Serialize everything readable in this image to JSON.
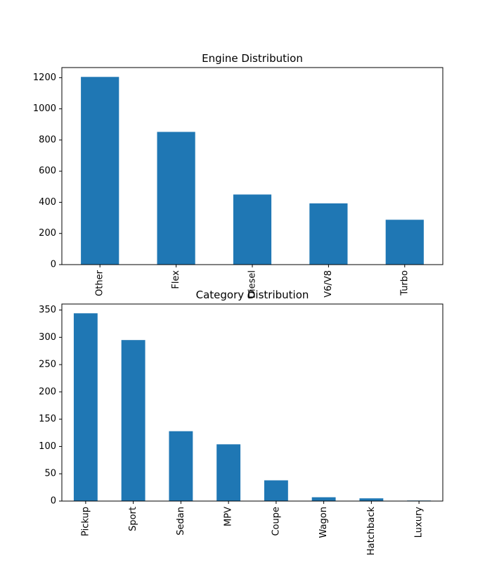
{
  "chart_data": [
    {
      "type": "bar",
      "title": "Engine Distribution",
      "xlabel": "",
      "ylabel": "",
      "categories": [
        "Other",
        "Flex",
        "Diesel",
        "V6/V8",
        "Turbo"
      ],
      "values": [
        1205,
        852,
        450,
        393,
        288
      ],
      "ylim": [
        0,
        1265
      ],
      "yticks": [
        0,
        200,
        400,
        600,
        800,
        1000,
        1200
      ],
      "grid": false,
      "bar_color": "#1f77b4"
    },
    {
      "type": "bar",
      "title": "Category Distribution",
      "xlabel": "",
      "ylabel": "",
      "categories": [
        "Pickup",
        "Sport",
        "Sedan",
        "MPV",
        "Coupe",
        "Wagon",
        "Hatchback",
        "Luxury"
      ],
      "values": [
        344,
        295,
        128,
        104,
        38,
        7,
        5,
        1
      ],
      "ylim": [
        0,
        361
      ],
      "yticks": [
        0,
        50,
        100,
        150,
        200,
        250,
        300,
        350
      ],
      "grid": false,
      "bar_color": "#1f77b4"
    }
  ]
}
